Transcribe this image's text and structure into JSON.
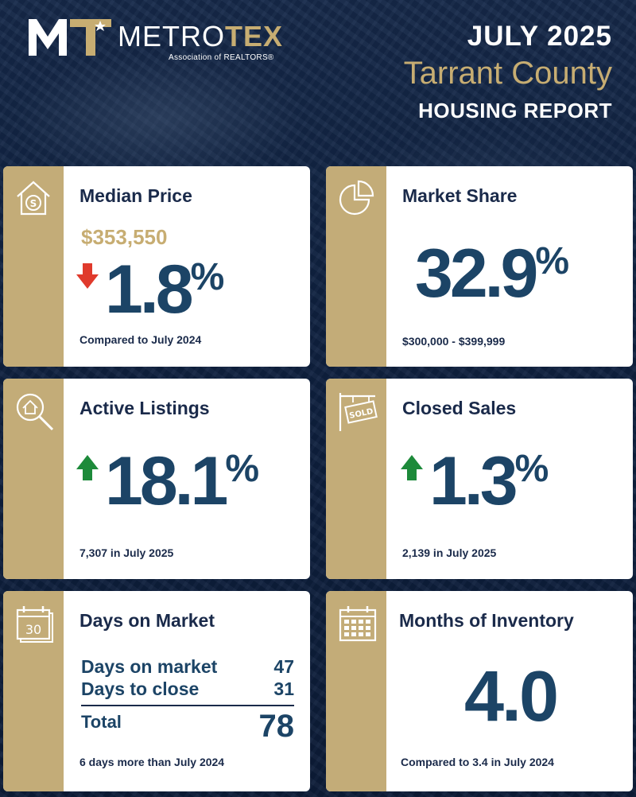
{
  "header": {
    "logo_prefix": "METRO",
    "logo_accent": "TEX",
    "logo_sub": "Association of REALTORS®",
    "date": "JULY 2025",
    "county": "Tarrant County",
    "report": "HOUSING REPORT"
  },
  "colors": {
    "navy": "#0d1e3a",
    "gold": "#c3ac78",
    "figure": "#1c4466",
    "up": "#1d8a3a",
    "down": "#e03a2c"
  },
  "cards": {
    "median_price": {
      "icon": "house-dollar-icon",
      "title": "Median Price",
      "price": "$353,550",
      "direction": "down",
      "change": "1.8",
      "pct": "%",
      "note": "Compared to July 2024"
    },
    "market_share": {
      "icon": "pie-chart-icon",
      "title": "Market Share",
      "value": "32.9",
      "pct": "%",
      "note": "$300,000 - $399,999"
    },
    "active_listings": {
      "icon": "house-search-icon",
      "title": "Active Listings",
      "direction": "up",
      "change": "18.1",
      "pct": "%",
      "note": "7,307 in July 2025"
    },
    "closed_sales": {
      "icon": "sold-sign-icon",
      "title": "Closed Sales",
      "direction": "up",
      "change": "1.3",
      "pct": "%",
      "note": "2,139 in July 2025"
    },
    "days_on_market": {
      "icon": "calendar-30-icon",
      "icon_text": "30",
      "title": "Days on Market",
      "rows": [
        {
          "label": "Days on market",
          "value": "47"
        },
        {
          "label": "Days to close",
          "value": "31"
        }
      ],
      "total_label": "Total",
      "total": "78",
      "note": "6 days more than July 2024"
    },
    "months_inventory": {
      "icon": "calendar-grid-icon",
      "title": "Months of Inventory",
      "value": "4.0",
      "note": "Compared to 3.4 in July 2024"
    }
  }
}
